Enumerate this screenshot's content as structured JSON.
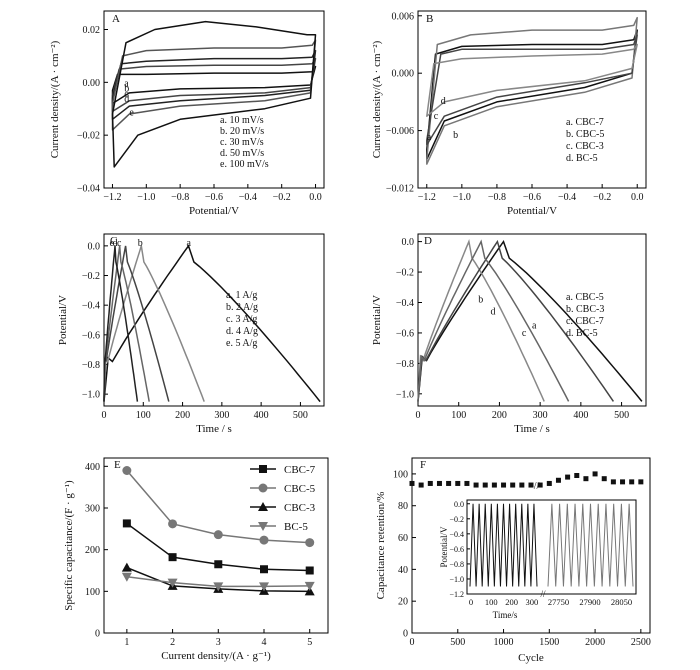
{
  "chart_data": [
    {
      "panel": "A",
      "type": "line",
      "xlabel": "Potential/V",
      "ylabel": "Current density/(A · cm⁻²)",
      "xlim": [
        -1.25,
        0.05
      ],
      "ylim": [
        -0.04,
        0.027
      ],
      "xticks": [
        -1.2,
        -1.0,
        -0.8,
        -0.6,
        -0.4,
        -0.2,
        0.0
      ],
      "xtick_labels": [
        "−1.2",
        "−1.0",
        "−0.8",
        "−0.6",
        "−0.4",
        "−0.2",
        "0.0"
      ],
      "yticks": [
        -0.04,
        -0.02,
        0.0,
        0.02
      ],
      "ytick_labels": [
        "−0.04",
        "−0.02",
        "0.00",
        "0.02"
      ],
      "legend": [
        "a. 10 mV/s",
        "b. 20 mV/s",
        "c. 30 mV/s",
        "d. 50 mV/s",
        "e. 100 mV/s"
      ],
      "legend_loc": "lower-right",
      "series": [
        {
          "name": "a",
          "values": [
            [
              -1.2,
              -0.003
            ],
            [
              -1.17,
              0.003
            ],
            [
              -1.0,
              0.003
            ],
            [
              -0.6,
              0.0035
            ],
            [
              -0.2,
              0.0035
            ],
            [
              -0.02,
              0.004
            ],
            [
              0.0,
              0.006
            ],
            [
              -0.03,
              -0.001
            ],
            [
              -0.3,
              -0.002
            ],
            [
              -0.8,
              -0.0025
            ],
            [
              -1.1,
              -0.004
            ],
            [
              -1.2,
              -0.008
            ]
          ]
        },
        {
          "name": "b",
          "values": [
            [
              -1.2,
              -0.005
            ],
            [
              -1.16,
              0.005
            ],
            [
              -1.0,
              0.006
            ],
            [
              -0.6,
              0.0065
            ],
            [
              -0.2,
              0.0065
            ],
            [
              -0.02,
              0.007
            ],
            [
              0.0,
              0.009
            ],
            [
              -0.03,
              -0.002
            ],
            [
              -0.3,
              -0.004
            ],
            [
              -0.8,
              -0.005
            ],
            [
              -1.1,
              -0.007
            ],
            [
              -1.2,
              -0.011
            ]
          ]
        },
        {
          "name": "c",
          "values": [
            [
              -1.2,
              -0.006
            ],
            [
              -1.15,
              0.007
            ],
            [
              -1.0,
              0.008
            ],
            [
              -0.6,
              0.009
            ],
            [
              -0.2,
              0.009
            ],
            [
              -0.02,
              0.0095
            ],
            [
              0.0,
              0.012
            ],
            [
              -0.03,
              -0.003
            ],
            [
              -0.3,
              -0.005
            ],
            [
              -0.8,
              -0.007
            ],
            [
              -1.1,
              -0.009
            ],
            [
              -1.2,
              -0.014
            ]
          ]
        },
        {
          "name": "d",
          "values": [
            [
              -1.2,
              -0.008
            ],
            [
              -1.14,
              0.01
            ],
            [
              -1.0,
              0.012
            ],
            [
              -0.6,
              0.013
            ],
            [
              -0.2,
              0.013
            ],
            [
              -0.02,
              0.014
            ],
            [
              0.0,
              0.016
            ],
            [
              -0.03,
              -0.004
            ],
            [
              -0.3,
              -0.007
            ],
            [
              -0.8,
              -0.009
            ],
            [
              -1.1,
              -0.012
            ],
            [
              -1.2,
              -0.018
            ]
          ]
        },
        {
          "name": "e",
          "values": [
            [
              -1.2,
              -0.012
            ],
            [
              -1.12,
              0.015
            ],
            [
              -0.95,
              0.02
            ],
            [
              -0.65,
              0.023
            ],
            [
              -0.35,
              0.021
            ],
            [
              -0.05,
              0.018
            ],
            [
              0.0,
              0.018
            ],
            [
              -0.03,
              -0.006
            ],
            [
              -0.3,
              -0.01
            ],
            [
              -0.8,
              -0.014
            ],
            [
              -1.05,
              -0.02
            ],
            [
              -1.19,
              -0.032
            ]
          ]
        }
      ]
    },
    {
      "panel": "B",
      "type": "line",
      "xlabel": "Potential/V",
      "ylabel": "Current density/(A · cm⁻²)",
      "xlim": [
        -1.25,
        0.05
      ],
      "ylim": [
        -0.012,
        0.0065
      ],
      "xticks": [
        -1.2,
        -1.0,
        -0.8,
        -0.6,
        -0.4,
        -0.2,
        0.0
      ],
      "xtick_labels": [
        "−1.2",
        "−1.0",
        "−0.8",
        "−0.6",
        "−0.4",
        "−0.2",
        "0.0"
      ],
      "yticks": [
        -0.012,
        -0.006,
        0.0,
        0.006
      ],
      "ytick_labels": [
        "−0.012",
        "−0.006",
        "0.000",
        "0.006"
      ],
      "legend": [
        "a. CBC-7",
        "b. CBC-5",
        "c. CBC-3",
        "d. BC-5"
      ],
      "legend_loc": "lower-right",
      "series": [
        {
          "name": "a",
          "values": [
            [
              -1.2,
              -0.008
            ],
            [
              -1.15,
              0.002
            ],
            [
              -1.0,
              0.0028
            ],
            [
              -0.6,
              0.003
            ],
            [
              -0.2,
              0.003
            ],
            [
              -0.02,
              0.0035
            ],
            [
              0.0,
              0.0045
            ],
            [
              -0.03,
              0.0
            ],
            [
              -0.3,
              -0.0015
            ],
            [
              -0.8,
              -0.003
            ],
            [
              -1.1,
              -0.005
            ],
            [
              -1.2,
              -0.009
            ]
          ]
        },
        {
          "name": "b",
          "values": [
            [
              -1.2,
              -0.009
            ],
            [
              -1.14,
              0.003
            ],
            [
              -0.95,
              0.004
            ],
            [
              -0.6,
              0.0045
            ],
            [
              -0.2,
              0.0045
            ],
            [
              -0.02,
              0.005
            ],
            [
              0.0,
              0.0058
            ],
            [
              -0.03,
              -0.0005
            ],
            [
              -0.3,
              -0.002
            ],
            [
              -0.8,
              -0.0035
            ],
            [
              -1.1,
              -0.0055
            ],
            [
              -1.2,
              -0.0095
            ]
          ]
        },
        {
          "name": "c",
          "values": [
            [
              -1.2,
              -0.007
            ],
            [
              -1.12,
              0.002
            ],
            [
              -1.0,
              0.0025
            ],
            [
              -0.6,
              0.0025
            ],
            [
              -0.2,
              0.0025
            ],
            [
              -0.02,
              0.003
            ],
            [
              0.0,
              0.004
            ],
            [
              -0.03,
              0.0
            ],
            [
              -0.3,
              -0.001
            ],
            [
              -0.8,
              -0.0025
            ],
            [
              -1.1,
              -0.0045
            ],
            [
              -1.2,
              -0.0075
            ]
          ]
        },
        {
          "name": "d",
          "values": [
            [
              -1.2,
              -0.0045
            ],
            [
              -1.16,
              0.001
            ],
            [
              -1.0,
              0.0015
            ],
            [
              -0.6,
              0.0018
            ],
            [
              -0.2,
              0.002
            ],
            [
              -0.02,
              0.0025
            ],
            [
              0.0,
              0.003
            ],
            [
              -0.03,
              0.0005
            ],
            [
              -0.3,
              -0.0008
            ],
            [
              -0.8,
              -0.0018
            ],
            [
              -1.1,
              -0.003
            ],
            [
              -1.2,
              -0.0045
            ]
          ]
        }
      ]
    },
    {
      "panel": "C",
      "type": "line",
      "xlabel": "Time / s",
      "ylabel": "Potential/V",
      "xlim": [
        0,
        560
      ],
      "ylim": [
        -1.08,
        0.08
      ],
      "xticks": [
        0,
        100,
        200,
        300,
        400,
        500
      ],
      "xtick_labels": [
        "0",
        "100",
        "200",
        "300",
        "400",
        "500"
      ],
      "yticks": [
        -1.0,
        -0.8,
        -0.6,
        -0.4,
        -0.2,
        0.0
      ],
      "ytick_labels": [
        "−1.0",
        "−0.8",
        "−0.6",
        "−0.4",
        "−0.2",
        "0.0"
      ],
      "legend": [
        "a. 1 A/g",
        "b. 2 A/g",
        "c. 3 A/g",
        "d. 4 A/g",
        "e. 5 A/g"
      ],
      "legend_loc": "right",
      "curve_labels": [
        "e",
        "d",
        "c",
        "b",
        "a"
      ],
      "series": [
        {
          "name": "a",
          "charge_end": 215,
          "end": 550
        },
        {
          "name": "b",
          "charge_end": 95,
          "end": 255
        },
        {
          "name": "c",
          "charge_end": 55,
          "end": 165
        },
        {
          "name": "d",
          "charge_end": 40,
          "end": 115
        },
        {
          "name": "e",
          "charge_end": 28,
          "end": 85
        }
      ]
    },
    {
      "panel": "D",
      "type": "line",
      "xlabel": "Time / s",
      "ylabel": "Potential/V",
      "xlim": [
        0,
        560
      ],
      "ylim": [
        -1.08,
        0.05
      ],
      "xticks": [
        0,
        100,
        200,
        300,
        400,
        500
      ],
      "xtick_labels": [
        "0",
        "100",
        "200",
        "300",
        "400",
        "500"
      ],
      "yticks": [
        -1.0,
        -0.8,
        -0.6,
        -0.4,
        -0.2,
        0.0
      ],
      "ytick_labels": [
        "−1.0",
        "−0.8",
        "−0.6",
        "−0.4",
        "−0.2",
        "0.0"
      ],
      "legend": [
        "a. CBC-5",
        "b. CBC-3",
        "c. CBC-7",
        "d. BC-5"
      ],
      "legend_loc": "right",
      "curve_labels": [
        "b",
        "d",
        "c",
        "a"
      ],
      "series": [
        {
          "name": "a",
          "charge_end": 210,
          "end": 550
        },
        {
          "name": "b",
          "charge_end": 125,
          "end": 310
        },
        {
          "name": "c",
          "charge_end": 195,
          "end": 480
        },
        {
          "name": "d",
          "charge_end": 155,
          "end": 370
        }
      ]
    },
    {
      "panel": "E",
      "type": "line",
      "xlabel": "Current density/(A · g⁻¹)",
      "ylabel": "Specific capacitance/(F · g⁻¹)",
      "xlim": [
        0.5,
        5.4
      ],
      "ylim": [
        0,
        420
      ],
      "xticks": [
        1,
        2,
        3,
        4,
        5
      ],
      "xtick_labels": [
        "1",
        "2",
        "3",
        "4",
        "5"
      ],
      "yticks": [
        0,
        100,
        200,
        300,
        400
      ],
      "ytick_labels": [
        "0",
        "100",
        "200",
        "300",
        "400"
      ],
      "legend_loc": "top-right",
      "categories": [
        1,
        2,
        3,
        4,
        5
      ],
      "series": [
        {
          "name": "CBC-7",
          "values": [
            263,
            182,
            165,
            153,
            150
          ],
          "marker": "square",
          "color": "#111111"
        },
        {
          "name": "CBC-5",
          "values": [
            390,
            262,
            236,
            223,
            217
          ],
          "marker": "circle",
          "color": "#777777"
        },
        {
          "name": "CBC-3",
          "values": [
            157,
            113,
            106,
            101,
            100
          ],
          "marker": "triangle-up",
          "color": "#111111"
        },
        {
          "name": "BC-5",
          "values": [
            135,
            121,
            112,
            112,
            113
          ],
          "marker": "triangle-down",
          "color": "#777777"
        }
      ]
    },
    {
      "panel": "F",
      "type": "scatter",
      "xlabel": "Cycle",
      "ylabel": "Capacitance retention/%",
      "xlim": [
        0,
        2600
      ],
      "ylim": [
        0,
        110
      ],
      "xticks": [
        0,
        500,
        1000,
        1500,
        2000,
        2500
      ],
      "xtick_labels": [
        "0",
        "500",
        "1000",
        "1500",
        "2000",
        "2500"
      ],
      "yticks": [
        0,
        20,
        40,
        60,
        80,
        100
      ],
      "ytick_labels": [
        "0",
        "20",
        "40",
        "60",
        "80",
        "100"
      ],
      "x": [
        0,
        100,
        200,
        300,
        400,
        500,
        600,
        700,
        800,
        900,
        1000,
        1100,
        1200,
        1300,
        1400,
        1500,
        1600,
        1700,
        1800,
        1900,
        2000,
        2100,
        2200,
        2300,
        2400,
        2500
      ],
      "values": [
        94,
        93,
        94,
        94,
        94,
        94,
        94,
        93,
        93,
        93,
        93,
        93,
        93,
        93,
        93,
        94,
        96,
        98,
        99,
        97,
        100,
        97,
        95,
        95,
        95,
        95
      ],
      "inset": {
        "ylabel": "Potential/V",
        "xlabel": "Time/s",
        "ylim": [
          -1.2,
          0.05
        ],
        "yticks": [
          0.0,
          -0.2,
          -0.4,
          -0.6,
          -0.8,
          -1.0,
          -1.2
        ],
        "ytick_labels": [
          "0.0",
          "−0.2",
          "−0.4",
          "−0.6",
          "−0.8",
          "−1.0",
          "−1.2"
        ],
        "left_xticks": [
          0,
          100,
          200,
          300
        ],
        "left_xtick_labels": [
          "0",
          "100",
          "200",
          "300"
        ],
        "right_xticks": [
          27750,
          27900,
          28050
        ],
        "right_xtick_labels": [
          "27750",
          "27900",
          "28050"
        ],
        "left_cycles": 11,
        "right_cycles": 11
      }
    }
  ]
}
